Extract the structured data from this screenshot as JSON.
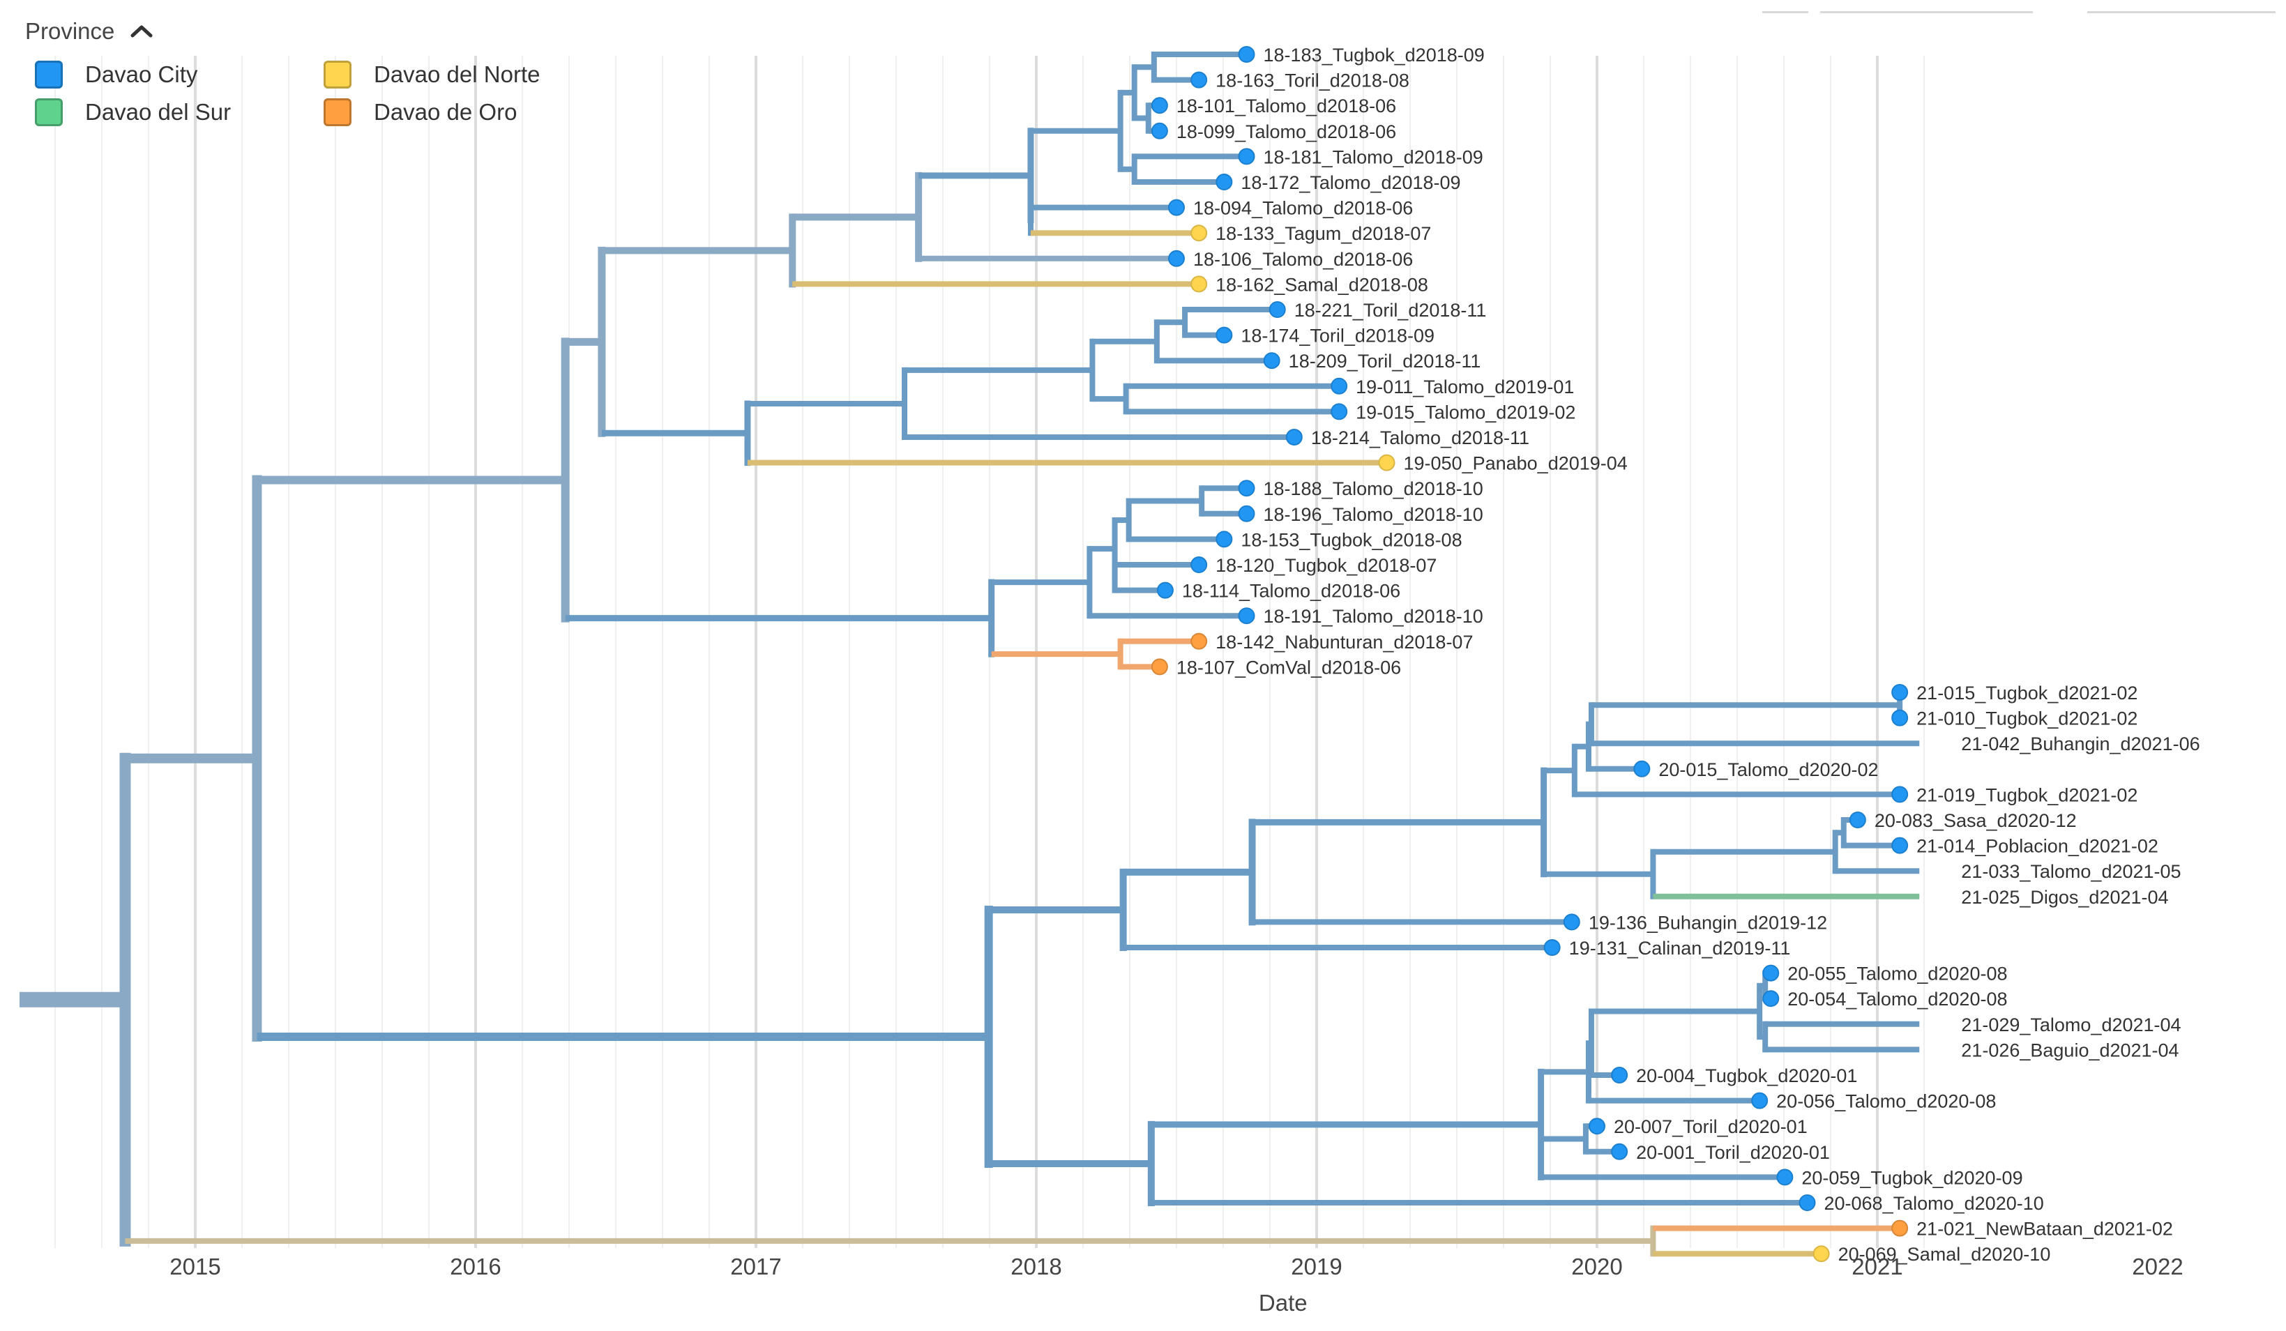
{
  "legend": {
    "title": "Province",
    "toggle_icon": "chevron-up-icon",
    "items": [
      {
        "label": "Davao City",
        "color": "#2196f3"
      },
      {
        "label": "Davao del Sur",
        "color": "#5fd38d"
      },
      {
        "label": "Davao del Norte",
        "color": "#ffd54f"
      },
      {
        "label": "Davao de Oro",
        "color": "#ff9f40"
      }
    ]
  },
  "chart_data": {
    "type": "tree",
    "xlabel": "Date",
    "x_ticks": [
      "2015",
      "2016",
      "2017",
      "2018",
      "2019",
      "2020",
      "2021",
      "2022"
    ],
    "xlim": [
      2014.4,
      2022.3
    ],
    "colors": {
      "Davao City": "#2196f3",
      "Davao del Sur": "#5fd38d",
      "Davao del Norte": "#ffd54f",
      "Davao de Oro": "#ff9f40",
      "branch_main": "#8aa9c4",
      "branch_city": "#6a9bc4",
      "branch_mixed": "#c9bc96",
      "branch_del_sur": "#7fbf9a",
      "branch_norte": "#d9bd73",
      "branch_oro": "#f0a66c"
    },
    "tips": [
      {
        "label": "18-183_Tugbok_d2018-09",
        "date": 2018.75,
        "province": "Davao City",
        "dot": true
      },
      {
        "label": "18-163_Toril_d2018-08",
        "date": 2018.58,
        "province": "Davao City",
        "dot": true
      },
      {
        "label": "18-101_Talomo_d2018-06",
        "date": 2018.44,
        "province": "Davao City",
        "dot": true
      },
      {
        "label": "18-099_Talomo_d2018-06",
        "date": 2018.44,
        "province": "Davao City",
        "dot": true
      },
      {
        "label": "18-181_Talomo_d2018-09",
        "date": 2018.75,
        "province": "Davao City",
        "dot": true
      },
      {
        "label": "18-172_Talomo_d2018-09",
        "date": 2018.67,
        "province": "Davao City",
        "dot": true
      },
      {
        "label": "18-094_Talomo_d2018-06",
        "date": 2018.5,
        "province": "Davao City",
        "dot": true
      },
      {
        "label": "18-133_Tagum_d2018-07",
        "date": 2018.58,
        "province": "Davao del Norte",
        "dot": true
      },
      {
        "label": "18-106_Talomo_d2018-06",
        "date": 2018.5,
        "province": "Davao City",
        "dot": true
      },
      {
        "label": "18-162_Samal_d2018-08",
        "date": 2018.58,
        "province": "Davao del Norte",
        "dot": true
      },
      {
        "label": "18-221_Toril_d2018-11",
        "date": 2018.86,
        "province": "Davao City",
        "dot": true
      },
      {
        "label": "18-174_Toril_d2018-09",
        "date": 2018.67,
        "province": "Davao City",
        "dot": true
      },
      {
        "label": "18-209_Toril_d2018-11",
        "date": 2018.84,
        "province": "Davao City",
        "dot": true
      },
      {
        "label": "19-011_Talomo_d2019-01",
        "date": 2019.08,
        "province": "Davao City",
        "dot": true
      },
      {
        "label": "19-015_Talomo_d2019-02",
        "date": 2019.08,
        "province": "Davao City",
        "dot": true
      },
      {
        "label": "18-214_Talomo_d2018-11",
        "date": 2018.92,
        "province": "Davao City",
        "dot": true
      },
      {
        "label": "19-050_Panabo_d2019-04",
        "date": 2019.25,
        "province": "Davao del Norte",
        "dot": true
      },
      {
        "label": "18-188_Talomo_d2018-10",
        "date": 2018.75,
        "province": "Davao City",
        "dot": true
      },
      {
        "label": "18-196_Talomo_d2018-10",
        "date": 2018.75,
        "province": "Davao City",
        "dot": true
      },
      {
        "label": "18-153_Tugbok_d2018-08",
        "date": 2018.67,
        "province": "Davao City",
        "dot": true
      },
      {
        "label": "18-120_Tugbok_d2018-07",
        "date": 2018.58,
        "province": "Davao City",
        "dot": true
      },
      {
        "label": "18-114_Talomo_d2018-06",
        "date": 2018.46,
        "province": "Davao City",
        "dot": true
      },
      {
        "label": "18-191_Talomo_d2018-10",
        "date": 2018.75,
        "province": "Davao City",
        "dot": true
      },
      {
        "label": "18-142_Nabunturan_d2018-07",
        "date": 2018.58,
        "province": "Davao de Oro",
        "dot": true
      },
      {
        "label": "18-107_ComVal_d2018-06",
        "date": 2018.44,
        "province": "Davao de Oro",
        "dot": true
      },
      {
        "label": "21-015_Tugbok_d2021-02",
        "date": 2021.08,
        "province": "Davao City",
        "dot": true
      },
      {
        "label": "21-010_Tugbok_d2021-02",
        "date": 2021.08,
        "province": "Davao City",
        "dot": true
      },
      {
        "label": "21-042_Buhangin_d2021-06",
        "date": 2021.15,
        "province": "Davao City",
        "dot": false
      },
      {
        "label": "20-015_Talomo_d2020-02",
        "date": 2020.16,
        "province": "Davao City",
        "dot": true
      },
      {
        "label": "21-019_Tugbok_d2021-02",
        "date": 2021.08,
        "province": "Davao City",
        "dot": true
      },
      {
        "label": "20-083_Sasa_d2020-12",
        "date": 2020.93,
        "province": "Davao City",
        "dot": true
      },
      {
        "label": "21-014_Poblacion_d2021-02",
        "date": 2021.08,
        "province": "Davao City",
        "dot": true
      },
      {
        "label": "21-033_Talomo_d2021-05",
        "date": 2021.15,
        "province": "Davao City",
        "dot": false
      },
      {
        "label": "21-025_Digos_d2021-04",
        "date": 2021.15,
        "province": "Davao del Sur",
        "dot": false
      },
      {
        "label": "19-136_Buhangin_d2019-12",
        "date": 2019.91,
        "province": "Davao City",
        "dot": true
      },
      {
        "label": "19-131_Calinan_d2019-11",
        "date": 2019.84,
        "province": "Davao City",
        "dot": true
      },
      {
        "label": "20-055_Talomo_d2020-08",
        "date": 2020.62,
        "province": "Davao City",
        "dot": true
      },
      {
        "label": "20-054_Talomo_d2020-08",
        "date": 2020.62,
        "province": "Davao City",
        "dot": true
      },
      {
        "label": "21-029_Talomo_d2021-04",
        "date": 2021.15,
        "province": "Davao City",
        "dot": false
      },
      {
        "label": "21-026_Baguio_d2021-04",
        "date": 2021.15,
        "province": "Davao City",
        "dot": false
      },
      {
        "label": "20-004_Tugbok_d2020-01",
        "date": 2020.08,
        "province": "Davao City",
        "dot": true
      },
      {
        "label": "20-056_Talomo_d2020-08",
        "date": 2020.58,
        "province": "Davao City",
        "dot": true
      },
      {
        "label": "20-007_Toril_d2020-01",
        "date": 2020.0,
        "province": "Davao City",
        "dot": true
      },
      {
        "label": "20-001_Toril_d2020-01",
        "date": 2020.08,
        "province": "Davao City",
        "dot": true
      },
      {
        "label": "20-059_Tugbok_d2020-09",
        "date": 2020.67,
        "province": "Davao City",
        "dot": true
      },
      {
        "label": "20-068_Talomo_d2020-10",
        "date": 2020.75,
        "province": "Davao City",
        "dot": true
      },
      {
        "label": "21-021_NewBataan_d2021-02",
        "date": 2021.08,
        "province": "Davao de Oro",
        "dot": true
      },
      {
        "label": "20-069_Samal_d2020-10",
        "date": 2020.8,
        "province": "Davao del Norte",
        "dot": true
      }
    ],
    "nodes": [
      {
        "id": "R",
        "date": 2014.75,
        "children": [
          "A",
          "Z"
        ],
        "color": "branch_main",
        "w": 16
      },
      {
        "id": "A",
        "date": 2015.22,
        "children": [
          "B",
          "U"
        ],
        "color": "branch_main",
        "w": 14
      },
      {
        "id": "B",
        "date": 2016.32,
        "children": [
          "B1",
          "O"
        ],
        "color": "branch_main",
        "w": 12
      },
      {
        "id": "B1",
        "date": 2016.45,
        "children": [
          "C",
          "J"
        ],
        "color": "branch_main",
        "w": 11
      },
      {
        "id": "C",
        "date": 2017.13,
        "children": [
          "D",
          9
        ],
        "color": "branch_main",
        "w": 10
      },
      {
        "id": "D",
        "date": 2017.58,
        "children": [
          "E",
          8
        ],
        "color": "branch_main",
        "w": 10
      },
      {
        "id": "E",
        "date": 2017.98,
        "children": [
          "F",
          "I"
        ],
        "color": "branch_city",
        "w": 9
      },
      {
        "id": "F",
        "date": 2018.3,
        "children": [
          "G",
          "H"
        ],
        "color": "branch_city",
        "w": 8
      },
      {
        "id": "G",
        "date": 2018.35,
        "children": [
          "G1",
          "G2"
        ],
        "color": "branch_city",
        "w": 8
      },
      {
        "id": "G1",
        "date": 2018.42,
        "children": [
          0,
          1
        ],
        "color": "branch_city",
        "w": 8
      },
      {
        "id": "G2",
        "date": 2018.4,
        "children": [
          2,
          3
        ],
        "color": "branch_city",
        "w": 8
      },
      {
        "id": "H",
        "date": 2018.35,
        "children": [
          4,
          5
        ],
        "color": "branch_city",
        "w": 8
      },
      {
        "id": "I",
        "date": 2017.98,
        "children": [
          6,
          7
        ],
        "color": "branch_city",
        "w": 8
      },
      {
        "id": "J",
        "date": 2016.97,
        "children": [
          "K",
          16
        ],
        "color": "branch_city",
        "w": 9
      },
      {
        "id": "K",
        "date": 2017.53,
        "children": [
          "L",
          15
        ],
        "color": "branch_city",
        "w": 8
      },
      {
        "id": "L",
        "date": 2018.2,
        "children": [
          "M",
          "N"
        ],
        "color": "branch_city",
        "w": 8
      },
      {
        "id": "M",
        "date": 2018.43,
        "children": [
          "M1",
          12
        ],
        "color": "branch_city",
        "w": 8
      },
      {
        "id": "M1",
        "date": 2018.53,
        "children": [
          10,
          11
        ],
        "color": "branch_city",
        "w": 8
      },
      {
        "id": "N",
        "date": 2018.32,
        "children": [
          13,
          14
        ],
        "color": "branch_city",
        "w": 8
      },
      {
        "id": "O",
        "date": 2017.84,
        "children": [
          "P",
          "T"
        ],
        "color": "branch_city",
        "w": 9
      },
      {
        "id": "P",
        "date": 2018.19,
        "children": [
          "Q",
          22
        ],
        "color": "branch_city",
        "w": 8
      },
      {
        "id": "Q",
        "date": 2018.28,
        "children": [
          "Q1",
          "S"
        ],
        "color": "branch_city",
        "w": 8
      },
      {
        "id": "Q1",
        "date": 2018.33,
        "children": [
          "R1",
          19
        ],
        "color": "branch_city",
        "w": 8
      },
      {
        "id": "R1",
        "date": 2018.59,
        "children": [
          17,
          18
        ],
        "color": "branch_city",
        "w": 8
      },
      {
        "id": "S",
        "date": 2018.28,
        "children": [
          20,
          21
        ],
        "color": "branch_city",
        "w": 8
      },
      {
        "id": "T",
        "date": 2018.3,
        "children": [
          23,
          24
        ],
        "color": "branch_oro",
        "w": 8
      },
      {
        "id": "U",
        "date": 2017.83,
        "children": [
          "V",
          "W"
        ],
        "color": "branch_city",
        "w": 12
      },
      {
        "id": "V",
        "date": 2018.31,
        "children": [
          "V1",
          35
        ],
        "color": "branch_city",
        "w": 10
      },
      {
        "id": "V1",
        "date": 2018.77,
        "children": [
          "V2",
          34
        ],
        "color": "branch_city",
        "w": 10
      },
      {
        "id": "V2",
        "date": 2019.81,
        "children": [
          "V3",
          "V7"
        ],
        "color": "branch_city",
        "w": 9
      },
      {
        "id": "V3",
        "date": 2019.92,
        "children": [
          "V4",
          29
        ],
        "color": "branch_city",
        "w": 8
      },
      {
        "id": "V4",
        "date": 2019.97,
        "children": [
          "V5",
          28
        ],
        "color": "branch_city",
        "w": 8
      },
      {
        "id": "V5",
        "date": 2019.98,
        "children": [
          "V6",
          27
        ],
        "color": "branch_city",
        "w": 8
      },
      {
        "id": "V6",
        "date": 2021.08,
        "children": [
          25,
          26
        ],
        "color": "branch_city",
        "w": 8
      },
      {
        "id": "V7",
        "date": 2020.2,
        "children": [
          "V8",
          33
        ],
        "color": "branch_city",
        "w": 8
      },
      {
        "id": "V8",
        "date": 2020.85,
        "children": [
          "V9",
          32
        ],
        "color": "branch_city",
        "w": 8
      },
      {
        "id": "V9",
        "date": 2020.88,
        "children": [
          30,
          31
        ],
        "color": "branch_city",
        "w": 8
      },
      {
        "id": "W",
        "date": 2018.41,
        "children": [
          "X",
          45
        ],
        "color": "branch_city",
        "w": 10
      },
      {
        "id": "X",
        "date": 2019.8,
        "children": [
          "X1",
          "X6",
          44
        ],
        "color": "branch_city",
        "w": 9
      },
      {
        "id": "X1",
        "date": 2019.97,
        "children": [
          "X2",
          41
        ],
        "color": "branch_city",
        "w": 8
      },
      {
        "id": "X2",
        "date": 2019.98,
        "children": [
          "X3",
          40
        ],
        "color": "branch_city",
        "w": 8
      },
      {
        "id": "X3",
        "date": 2020.58,
        "children": [
          "X4",
          "X5"
        ],
        "color": "branch_city",
        "w": 8
      },
      {
        "id": "X4",
        "date": 2020.6,
        "children": [
          36,
          37
        ],
        "color": "branch_city",
        "w": 8
      },
      {
        "id": "X5",
        "date": 2020.6,
        "children": [
          38,
          39
        ],
        "color": "branch_city",
        "w": 8
      },
      {
        "id": "X6",
        "date": 2019.96,
        "children": [
          42,
          43
        ],
        "color": "branch_city",
        "w": 8
      },
      {
        "id": "Z",
        "date": 2020.2,
        "children": [
          46,
          47
        ],
        "color": "branch_mixed",
        "w": 8
      }
    ],
    "node_colors_by_tip": {
      "7": "branch_norte",
      "9": "branch_norte",
      "16": "branch_norte",
      "23": "branch_oro",
      "24": "branch_oro",
      "33": "branch_del_sur",
      "46": "branch_oro",
      "47": "branch_norte",
      "Z": "branch_mixed"
    }
  }
}
